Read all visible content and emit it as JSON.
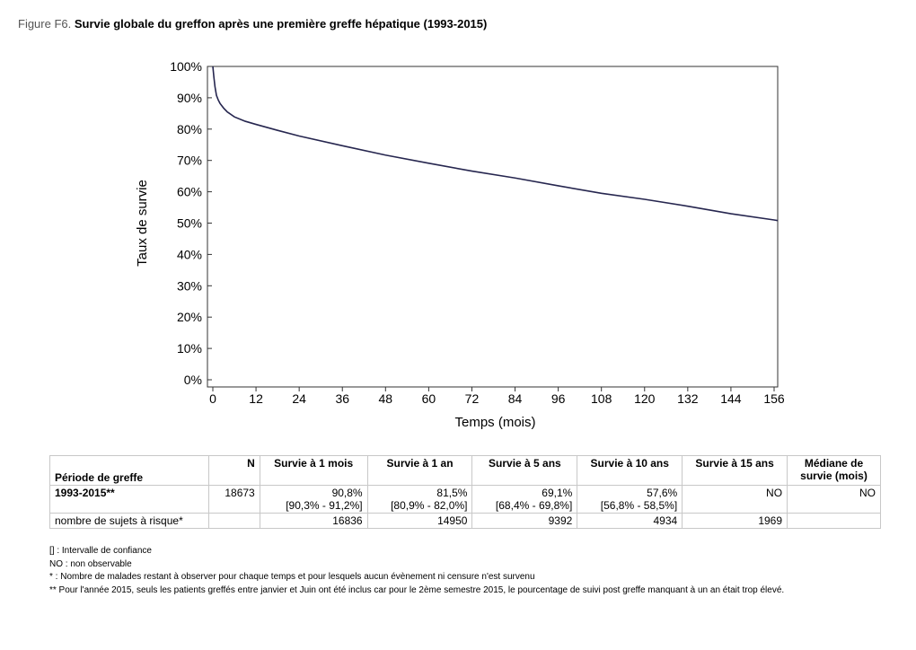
{
  "figure": {
    "label": "Figure F6.",
    "title": "Survie globale du greffon après une première greffe hépatique (1993-2015)"
  },
  "chart_data": {
    "type": "line",
    "xlabel": "Temps (mois)",
    "ylabel": "Taux de survie",
    "xlim": [
      0,
      157
    ],
    "ylim": [
      0,
      100
    ],
    "x_ticks": [
      0,
      12,
      24,
      36,
      48,
      60,
      72,
      84,
      96,
      108,
      120,
      132,
      144,
      156
    ],
    "y_ticks": [
      0,
      10,
      20,
      30,
      40,
      50,
      60,
      70,
      80,
      90,
      100
    ],
    "y_tick_suffix": "%",
    "grid": false,
    "legend": "none",
    "series": [
      {
        "color": "#26264f",
        "x": [
          0,
          0.3,
          0.6,
          1,
          1.5,
          2,
          3,
          4,
          6,
          9,
          12,
          18,
          24,
          36,
          48,
          60,
          72,
          84,
          96,
          108,
          120,
          132,
          144,
          156,
          157
        ],
        "y": [
          100,
          96.5,
          93.5,
          90.8,
          89.3,
          88.2,
          86.7,
          85.5,
          83.9,
          82.5,
          81.5,
          79.6,
          77.8,
          74.7,
          71.7,
          69.1,
          66.6,
          64.4,
          61.9,
          59.5,
          57.6,
          55.4,
          53.0,
          51.0,
          50.8
        ]
      }
    ]
  },
  "table": {
    "headers": [
      "Période de greffe",
      "N",
      "Survie à 1 mois",
      "Survie à 1 an",
      "Survie à 5 ans",
      "Survie à 10 ans",
      "Survie à 15 ans",
      "Médiane de survie (mois)"
    ],
    "row": {
      "period": "1993-2015**",
      "n": "18673",
      "values": [
        "90,8%",
        "81,5%",
        "69,1%",
        "57,6%",
        "NO"
      ],
      "cis": [
        "[90,3% - 91,2%]",
        "[80,9% - 82,0%]",
        "[68,4% - 69,8%]",
        "[56,8% - 58,5%]",
        ""
      ],
      "median": "NO"
    },
    "risk_row": {
      "label": "nombre de sujets à risque*",
      "values": [
        "16836",
        "14950",
        "9392",
        "4934",
        "1969"
      ]
    }
  },
  "notes": [
    "[] : Intervalle de confiance",
    "NO : non observable",
    "* : Nombre de malades restant à observer pour chaque temps et pour lesquels aucun évènement ni censure n'est survenu",
    "** Pour l'année  2015, seuls les patients greffés entre janvier et Juin ont été inclus car pour le 2ème semestre 2015, le pourcentage de suivi post greffe manquant à un an était trop élevé."
  ]
}
